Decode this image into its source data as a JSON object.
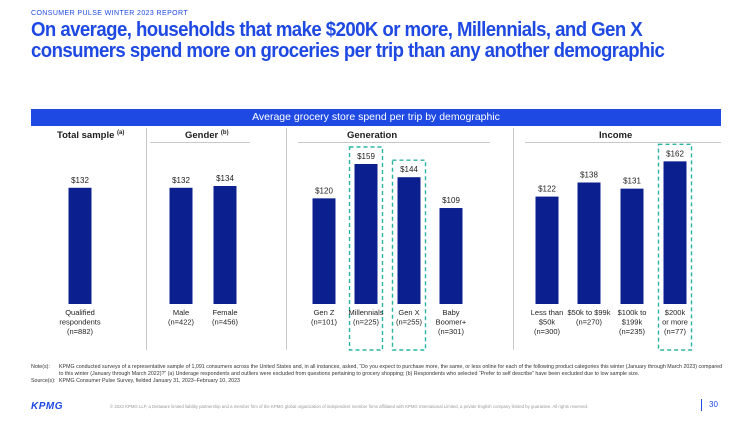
{
  "header": {
    "report_label": "CONSUMER PULSE WINTER 2023 REPORT",
    "headline": "On average, households that make $200K or more, Millennials, and Gen X consumers spend more on groceries  per trip than any another demographic"
  },
  "chart_data": {
    "type": "bar",
    "title": "Average grocery store spend per trip by demographic",
    "ylim": [
      0,
      170
    ],
    "value_prefix": "$",
    "groups": [
      {
        "title": "Total sample",
        "note": "(a)",
        "bars": [
          {
            "label": [
              "Qualified",
              "respondents",
              "(n=882)"
            ],
            "value": 132,
            "highlight": false
          }
        ]
      },
      {
        "title": "Gender",
        "note": "(b)",
        "bars": [
          {
            "label": [
              "Male",
              "(n=422)"
            ],
            "value": 132,
            "highlight": false
          },
          {
            "label": [
              "Female",
              "(n=456)"
            ],
            "value": 134,
            "highlight": false
          }
        ]
      },
      {
        "title": "Generation",
        "note": "",
        "bars": [
          {
            "label": [
              "Gen Z",
              "(n=101)"
            ],
            "value": 120,
            "highlight": false
          },
          {
            "label": [
              "Millennials",
              "(n=225)"
            ],
            "value": 159,
            "highlight": true
          },
          {
            "label": [
              "Gen X",
              "(n=255)"
            ],
            "value": 144,
            "highlight": true
          },
          {
            "label": [
              "Baby",
              "Boomer+",
              "(n=301)"
            ],
            "value": 109,
            "highlight": false
          }
        ]
      },
      {
        "title": "Income",
        "note": "",
        "bars": [
          {
            "label": [
              "Less than",
              "$50k",
              "(n=300)"
            ],
            "value": 122,
            "highlight": false
          },
          {
            "label": [
              "$50k to $99k",
              "(n=270)"
            ],
            "value": 138,
            "highlight": false
          },
          {
            "label": [
              "$100k to",
              "$199k",
              "(n=235)"
            ],
            "value": 131,
            "highlight": false
          },
          {
            "label": [
              "$200k",
              "or more",
              "(n=77)"
            ],
            "value": 162,
            "highlight": true
          }
        ]
      }
    ],
    "colors": {
      "bar": "#0c1f8f",
      "highlight_box": "#2bb5a0",
      "value_label": "#1e1e1e"
    }
  },
  "notes": {
    "notes_key": "Note(s):",
    "notes_text": "KPMG conducted surveys of a representative sample of 1,091 consumers across the United States and, in all instances, asked, “Do you expect to purchase more, the same, or less online for each of the following product categories this winter (January through March 2023) compared to this winter (January through March 2022)?” (a) Underage respondents and outliers were excluded from questions pertaining to grocery shopping; (b) Respondents who selected “Prefer to self describe” have been excluded due to low sample size.",
    "source_key": "Source(s):",
    "source_text": "KPMG Consumer Pulse Survey, fielded January 31, 2023–February 10, 2023"
  },
  "footer": {
    "logo": "KPMG",
    "legal": "© 2023 KPMG LLP, a Delaware limited liability partnership and a member firm of the KPMG global organization of independent member firms affiliated with KPMG International Limited, a private English company limited by guarantee. All rights reserved.",
    "page_number": "30"
  }
}
